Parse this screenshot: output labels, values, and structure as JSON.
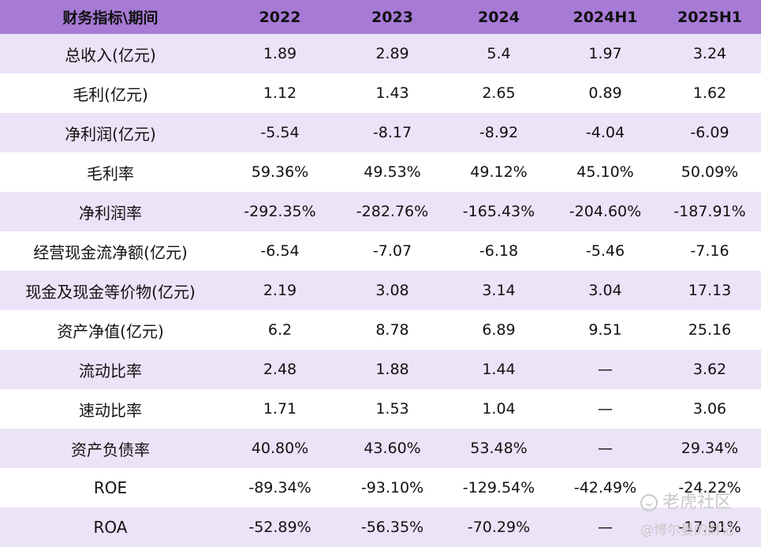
{
  "header": [
    "财务指标\\期间",
    "2022",
    "2023",
    "2024",
    "2024H1",
    "2025H1"
  ],
  "rows": [
    {
      "label": "总收入(亿元)",
      "values": [
        "1.89",
        "2.89",
        "5.4",
        "1.97",
        "3.24"
      ]
    },
    {
      "label": "毛利(亿元)",
      "values": [
        "1.12",
        "1.43",
        "2.65",
        "0.89",
        "1.62"
      ]
    },
    {
      "label": "净利润(亿元)",
      "values": [
        "-5.54",
        "-8.17",
        "-8.92",
        "-4.04",
        "-6.09"
      ]
    },
    {
      "label": "毛利率",
      "values": [
        "59.36%",
        "49.53%",
        "49.12%",
        "45.10%",
        "50.09%"
      ]
    },
    {
      "label": "净利润率",
      "values": [
        "-292.35%",
        "-282.76%",
        "-165.43%",
        "-204.60%",
        "-187.91%"
      ]
    },
    {
      "label": "经营现金流净额(亿元)",
      "values": [
        "-6.54",
        "-7.07",
        "-6.18",
        "-5.46",
        "-7.16"
      ]
    },
    {
      "label": "现金及现金等价物(亿元)",
      "values": [
        "2.19",
        "3.08",
        "3.14",
        "3.04",
        "17.13"
      ]
    },
    {
      "label": "资产净值(亿元)",
      "values": [
        "6.2",
        "8.78",
        "6.89",
        "9.51",
        "25.16"
      ]
    },
    {
      "label": "流动比率",
      "values": [
        "2.48",
        "1.88",
        "1.44",
        "—",
        "3.62"
      ]
    },
    {
      "label": "速动比率",
      "values": [
        "1.71",
        "1.53",
        "1.04",
        "—",
        "3.06"
      ]
    },
    {
      "label": "资产负债率",
      "values": [
        "40.80%",
        "43.60%",
        "53.48%",
        "—",
        "29.34%"
      ]
    },
    {
      "label": "ROE",
      "values": [
        "-89.34%",
        "-93.10%",
        "-129.54%",
        "-42.49%",
        "-24.22%"
      ]
    },
    {
      "label": "ROA",
      "values": [
        "-52.89%",
        "-56.35%",
        "-70.29%",
        "—",
        "-17.91%"
      ]
    }
  ],
  "watermark": {
    "brand": "老虎社区",
    "handle": "@博尔曼的财记"
  }
}
